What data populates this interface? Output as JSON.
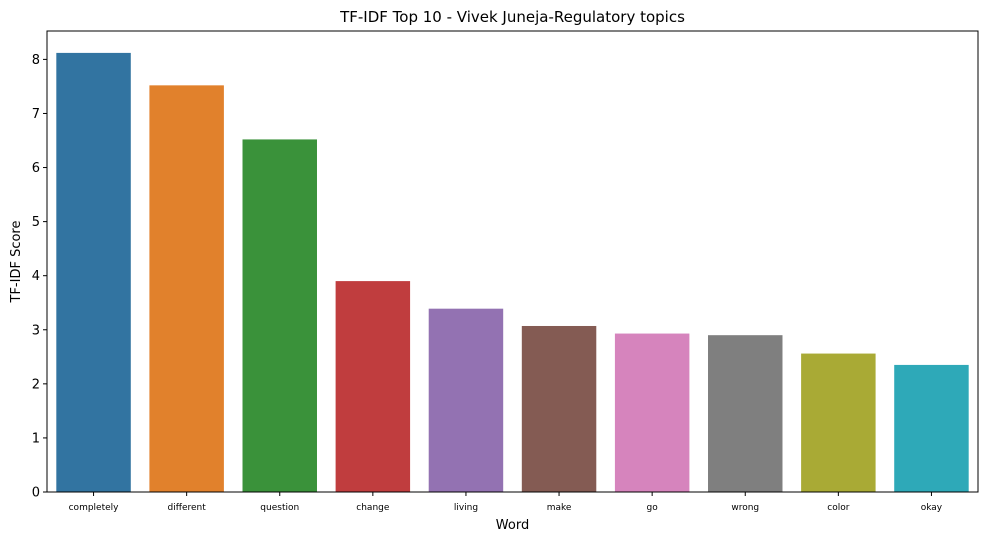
{
  "chart_data": {
    "type": "bar",
    "title": "TF-IDF Top 10 - Vivek Juneja-Regulatory topics",
    "xlabel": "Word",
    "ylabel": "TF-IDF Score",
    "categories": [
      "completely",
      "different",
      "question",
      "change",
      "living",
      "make",
      "go",
      "wrong",
      "color",
      "okay"
    ],
    "values": [
      8.12,
      7.52,
      6.52,
      3.9,
      3.39,
      3.07,
      2.93,
      2.9,
      2.56,
      2.35
    ],
    "colors": [
      "#3274a1",
      "#e1812c",
      "#3a923a",
      "#c03d3e",
      "#9372b2",
      "#845b53",
      "#d684bd",
      "#7f7f7f",
      "#a9aa35",
      "#2ea9b8"
    ],
    "yticks": [
      "0",
      "1",
      "2",
      "3",
      "4",
      "5",
      "6",
      "7",
      "8"
    ],
    "ylim": [
      0,
      8.525
    ],
    "grid": false,
    "legend": "none"
  }
}
